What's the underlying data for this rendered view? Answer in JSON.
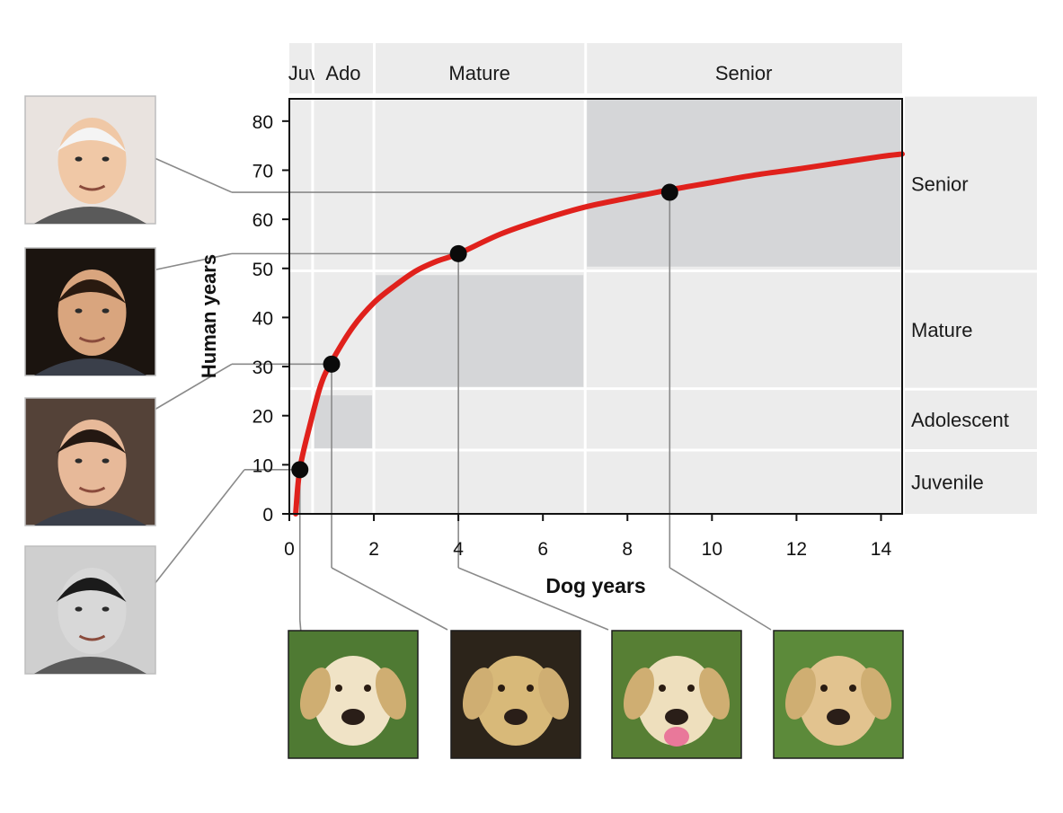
{
  "chart_data": {
    "type": "line",
    "xlabel": "Dog years",
    "ylabel": "Human years",
    "xlim": [
      0,
      14.5
    ],
    "ylim": [
      0,
      85
    ],
    "x_ticks": [
      0,
      2,
      4,
      6,
      8,
      10,
      12,
      14
    ],
    "y_ticks": [
      0,
      10,
      20,
      30,
      40,
      50,
      60,
      70,
      80
    ],
    "curve": {
      "x": [
        0.15,
        0.25,
        0.5,
        0.75,
        1,
        1.5,
        2,
        2.5,
        3,
        3.5,
        4,
        5,
        6,
        7,
        8,
        9,
        10,
        11,
        12,
        13,
        14,
        14.5
      ],
      "y": [
        0,
        9.2,
        18.5,
        26.4,
        31.0,
        38.0,
        43.0,
        46.5,
        49.5,
        51.5,
        53.0,
        57.0,
        60.0,
        62.5,
        64.3,
        66.0,
        67.5,
        69.0,
        70.2,
        71.5,
        72.8,
        73.3
      ],
      "color": "#e0211c"
    },
    "points": [
      {
        "x": 0.25,
        "y": 9
      },
      {
        "x": 1,
        "y": 30.5
      },
      {
        "x": 4,
        "y": 53
      },
      {
        "x": 9,
        "y": 65.5
      }
    ],
    "top_stages": [
      {
        "label": "Juv",
        "x0": 0,
        "x1": 0.55
      },
      {
        "label": "Ado",
        "x0": 0.55,
        "x1": 2
      },
      {
        "label": "Mature",
        "x0": 2,
        "x1": 7
      },
      {
        "label": "Senior",
        "x0": 7,
        "x1": 14.5
      }
    ],
    "side_stages": [
      {
        "label": "Senior",
        "y0": 49.5,
        "y1": 85
      },
      {
        "label": "Mature",
        "y0": 25.5,
        "y1": 49.5
      },
      {
        "label": "Adolescent",
        "y0": 13,
        "y1": 25.5
      },
      {
        "label": "Juvenile",
        "y0": 0,
        "y1": 13
      }
    ],
    "stage_boxes": [
      {
        "x0": 7,
        "x1": 14.5,
        "y0": 50,
        "y1": 85
      },
      {
        "x0": 2,
        "x1": 7,
        "y0": 25.5,
        "y1": 49
      },
      {
        "x0": 0.55,
        "x1": 2,
        "y0": 13,
        "y1": 24.5
      }
    ],
    "colors": {
      "band": "#ececec",
      "box": "#d5d6d8",
      "point": "#0a0a0a",
      "leader": "#8a8a8a"
    }
  },
  "photos": {
    "people": [
      {
        "name": "senior-man-photo",
        "color": "#e9e3df",
        "skin": "#f0c8a6",
        "hair": "#f4f4f4",
        "bg_dark": false
      },
      {
        "name": "adult-man-photo",
        "color": "#1b140f",
        "skin": "#d9a57e",
        "hair": "#2a1a10",
        "bg_dark": true
      },
      {
        "name": "teen-photo",
        "color": "#544238",
        "skin": "#e7b999",
        "hair": "#241812",
        "bg_dark": true
      },
      {
        "name": "child-photo",
        "color": "#cfcfcf",
        "skin": "#d8d8d8",
        "hair": "#1b1b1b",
        "bg_dark": false
      }
    ],
    "dogs": [
      {
        "name": "puppy-photo",
        "bg": "#4f7a33",
        "fur": "#f0e3c6"
      },
      {
        "name": "young-dog-photo",
        "bg": "#2c241a",
        "fur": "#d8b979"
      },
      {
        "name": "adult-dog-photo",
        "bg": "#577f34",
        "fur": "#eedfbd"
      },
      {
        "name": "old-dog-photo",
        "bg": "#5c8a3a",
        "fur": "#e2c38f"
      }
    ]
  }
}
